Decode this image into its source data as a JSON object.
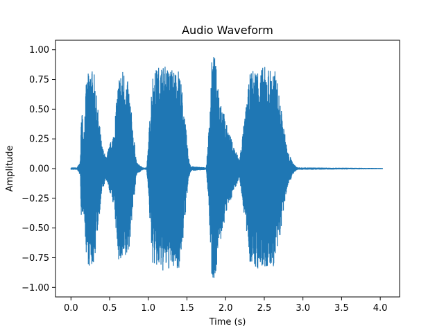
{
  "chart_data": {
    "type": "line",
    "title": "Audio Waveform",
    "xlabel": "Time (s)",
    "ylabel": "Amplitude",
    "xlim": [
      -0.2,
      4.25
    ],
    "ylim": [
      -1.08,
      1.08
    ],
    "x_ticks": [
      "0.0",
      "0.5",
      "1.0",
      "1.5",
      "2.0",
      "2.5",
      "3.0",
      "3.5",
      "4.0"
    ],
    "x_tick_values": [
      0.0,
      0.5,
      1.0,
      1.5,
      2.0,
      2.5,
      3.0,
      3.5,
      4.0
    ],
    "y_ticks": [
      "1.00",
      "0.75",
      "0.50",
      "0.25",
      "0.00",
      "−0.25",
      "−0.50",
      "−0.75",
      "−1.00"
    ],
    "y_tick_values": [
      1.0,
      0.75,
      0.5,
      0.25,
      0.0,
      -0.25,
      -0.5,
      -0.75,
      -1.0
    ],
    "grid": false,
    "legend": "none",
    "series": [
      {
        "color": "#1f77b4",
        "duration": 4.03,
        "envelope": [
          [
            0.0,
            0.01
          ],
          [
            0.08,
            0.01
          ],
          [
            0.12,
            0.06
          ],
          [
            0.14,
            0.6
          ],
          [
            0.16,
            0.3
          ],
          [
            0.2,
            0.75
          ],
          [
            0.25,
            0.87
          ],
          [
            0.3,
            0.8
          ],
          [
            0.35,
            0.5
          ],
          [
            0.4,
            0.2
          ],
          [
            0.45,
            0.1
          ],
          [
            0.55,
            0.3
          ],
          [
            0.62,
            0.8
          ],
          [
            0.68,
            0.85
          ],
          [
            0.75,
            0.7
          ],
          [
            0.8,
            0.35
          ],
          [
            0.85,
            0.05
          ],
          [
            0.93,
            0.01
          ],
          [
            0.98,
            0.01
          ],
          [
            1.0,
            0.2
          ],
          [
            1.05,
            0.8
          ],
          [
            1.15,
            0.88
          ],
          [
            1.3,
            0.85
          ],
          [
            1.4,
            0.84
          ],
          [
            1.45,
            0.6
          ],
          [
            1.52,
            0.1
          ],
          [
            1.55,
            0.02
          ],
          [
            1.75,
            0.01
          ],
          [
            1.78,
            0.3
          ],
          [
            1.82,
            0.9
          ],
          [
            1.85,
            0.98
          ],
          [
            1.9,
            0.75
          ],
          [
            2.0,
            0.4
          ],
          [
            2.1,
            0.2
          ],
          [
            2.18,
            0.08
          ],
          [
            2.25,
            0.45
          ],
          [
            2.32,
            0.82
          ],
          [
            2.4,
            0.86
          ],
          [
            2.55,
            0.86
          ],
          [
            2.65,
            0.82
          ],
          [
            2.72,
            0.5
          ],
          [
            2.8,
            0.15
          ],
          [
            2.88,
            0.04
          ],
          [
            2.93,
            0.01
          ],
          [
            4.03,
            0.005
          ]
        ]
      }
    ]
  }
}
